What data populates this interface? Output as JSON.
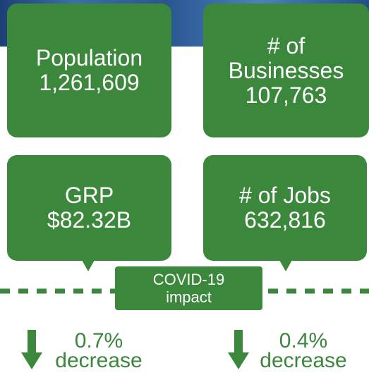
{
  "cards": [
    {
      "lines": [
        "Population",
        "1,261,609"
      ]
    },
    {
      "lines": [
        "# of",
        "Businesses",
        "107,763"
      ]
    },
    {
      "lines": [
        "GRP",
        "$82.32B"
      ]
    },
    {
      "lines": [
        "# of Jobs",
        "632,816"
      ]
    }
  ],
  "covid": {
    "lines": [
      "COVID-19",
      "impact"
    ]
  },
  "changes": [
    {
      "value": "0.7%",
      "label": "decrease"
    },
    {
      "value": "0.4%",
      "label": "decrease"
    }
  ]
}
